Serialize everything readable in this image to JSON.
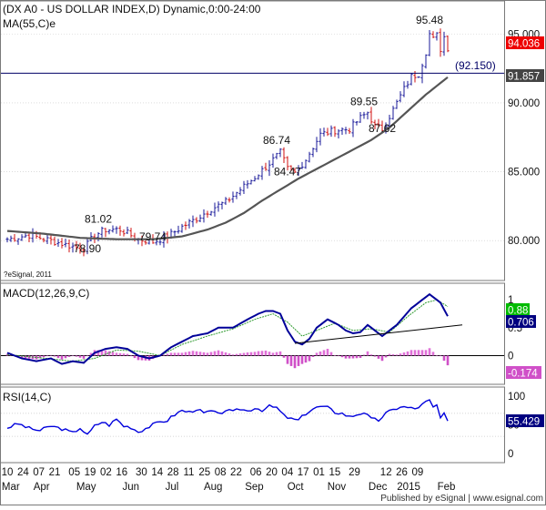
{
  "colors": {
    "frame": "#7a7a7a",
    "grid": "#c8c8c8",
    "text": "#111111",
    "bar_up": "#1a1a9a",
    "bar_down": "#d01010",
    "ma_line": "#555555",
    "macd_line": "#000099",
    "signal_line": "#2e9a2e",
    "hist_pos": "#e070d8",
    "hist_neg": "#d050c8",
    "rsi_line": "#0000dd",
    "hline": "#000066",
    "label_red_bg": "#ee0000",
    "label_green_bg": "#00bb00",
    "label_navy_bg": "#000080",
    "label_gray_bg": "#444444"
  },
  "header": {
    "title": "(DX A0 - US DOLLAR INDEX,D) Dynamic,0:00-24:00",
    "ma_label": "MA(55,C)e",
    "copyright": "?eSignal, 2011"
  },
  "footer": {
    "published": "Published by eSignal | www.esignal.com"
  },
  "chart_data": [
    {
      "type": "candlestick",
      "panel": "price",
      "title": "(DX A0 - US DOLLAR INDEX,D) Dynamic,0:00-24:00",
      "ylim": [
        77.5,
        97
      ],
      "y_ticks": [
        "95.000",
        "90.000",
        "85.000",
        "80.000"
      ],
      "last_price": "94.036",
      "ma_value": "91.857",
      "horizontal_level": "(92.150)",
      "annotations": [
        {
          "text": "95.48",
          "x": 116,
          "y": 95.48
        },
        {
          "text": "89.55",
          "x": 98,
          "y": 89.55
        },
        {
          "text": "87.62",
          "x": 103,
          "y": 87.62
        },
        {
          "text": "86.74",
          "x": 74,
          "y": 86.74
        },
        {
          "text": "84.47",
          "x": 77,
          "y": 84.47
        },
        {
          "text": "81.02",
          "x": 25,
          "y": 81.02
        },
        {
          "text": "79.74",
          "x": 40,
          "y": 79.74
        },
        {
          "text": "78.90",
          "x": 22,
          "y": 78.9
        }
      ],
      "close_keypoints": [
        [
          0,
          80.1
        ],
        [
          6,
          80.4
        ],
        [
          12,
          80.0
        ],
        [
          16,
          79.7
        ],
        [
          21,
          79.4
        ],
        [
          24,
          80.4
        ],
        [
          27,
          80.8
        ],
        [
          31,
          80.8
        ],
        [
          36,
          80.1
        ],
        [
          40,
          79.9
        ],
        [
          44,
          80.3
        ],
        [
          48,
          81.0
        ],
        [
          52,
          81.6
        ],
        [
          56,
          82.3
        ],
        [
          60,
          82.8
        ],
        [
          64,
          83.7
        ],
        [
          68,
          84.6
        ],
        [
          72,
          85.6
        ],
        [
          75,
          86.4
        ],
        [
          77,
          85.2
        ],
        [
          79,
          84.9
        ],
        [
          82,
          85.9
        ],
        [
          86,
          87.7
        ],
        [
          90,
          88.0
        ],
        [
          94,
          88.1
        ],
        [
          97,
          88.9
        ],
        [
          99,
          89.3
        ],
        [
          101,
          88.3
        ],
        [
          103,
          88.1
        ],
        [
          106,
          89.5
        ],
        [
          109,
          91.0
        ],
        [
          111,
          91.9
        ],
        [
          113,
          92.1
        ],
        [
          115,
          93.7
        ],
        [
          116,
          95.0
        ],
        [
          117,
          94.6
        ],
        [
          118,
          94.9
        ],
        [
          119,
          93.9
        ],
        [
          120,
          94.8
        ],
        [
          121,
          94.0
        ]
      ],
      "ma_keypoints": [
        [
          0,
          80.7
        ],
        [
          10,
          80.5
        ],
        [
          20,
          80.2
        ],
        [
          30,
          80.1
        ],
        [
          40,
          80.1
        ],
        [
          48,
          80.3
        ],
        [
          55,
          80.8
        ],
        [
          60,
          81.3
        ],
        [
          65,
          82.0
        ],
        [
          70,
          82.9
        ],
        [
          75,
          83.7
        ],
        [
          80,
          84.5
        ],
        [
          85,
          85.2
        ],
        [
          90,
          85.9
        ],
        [
          95,
          86.6
        ],
        [
          100,
          87.3
        ],
        [
          105,
          88.2
        ],
        [
          110,
          89.4
        ],
        [
          115,
          90.6
        ],
        [
          121,
          91.857
        ]
      ]
    },
    {
      "type": "line",
      "panel": "macd",
      "title": "MACD(12,26,9,C)",
      "ylim": [
        -0.45,
        1.2
      ],
      "y_ticks": [
        "1",
        "0.5",
        "0"
      ],
      "macd_value": "0.706",
      "signal_value": "0.88",
      "hist_value": "-0.174",
      "macd_keypoints": [
        [
          0,
          0.05
        ],
        [
          4,
          -0.05
        ],
        [
          8,
          -0.1
        ],
        [
          12,
          -0.05
        ],
        [
          15,
          -0.15
        ],
        [
          18,
          -0.1
        ],
        [
          21,
          -0.13
        ],
        [
          24,
          0.05
        ],
        [
          27,
          0.12
        ],
        [
          30,
          0.15
        ],
        [
          33,
          0.12
        ],
        [
          36,
          0.0
        ],
        [
          39,
          -0.05
        ],
        [
          42,
          0.0
        ],
        [
          45,
          0.15
        ],
        [
          48,
          0.25
        ],
        [
          51,
          0.35
        ],
        [
          55,
          0.4
        ],
        [
          58,
          0.5
        ],
        [
          62,
          0.5
        ],
        [
          66,
          0.65
        ],
        [
          69,
          0.75
        ],
        [
          71,
          0.8
        ],
        [
          73,
          0.8
        ],
        [
          75,
          0.75
        ],
        [
          77,
          0.45
        ],
        [
          79,
          0.25
        ],
        [
          81,
          0.2
        ],
        [
          83,
          0.3
        ],
        [
          85,
          0.5
        ],
        [
          88,
          0.65
        ],
        [
          91,
          0.55
        ],
        [
          93,
          0.45
        ],
        [
          95,
          0.4
        ],
        [
          97,
          0.42
        ],
        [
          99,
          0.55
        ],
        [
          101,
          0.45
        ],
        [
          103,
          0.35
        ],
        [
          105,
          0.45
        ],
        [
          107,
          0.55
        ],
        [
          109,
          0.7
        ],
        [
          111,
          0.85
        ],
        [
          113,
          0.95
        ],
        [
          115,
          1.05
        ],
        [
          116,
          1.1
        ],
        [
          117,
          1.05
        ],
        [
          119,
          0.95
        ],
        [
          121,
          0.706
        ]
      ],
      "signal_keypoints": [
        [
          0,
          0.02
        ],
        [
          6,
          -0.02
        ],
        [
          12,
          -0.06
        ],
        [
          18,
          -0.1
        ],
        [
          24,
          -0.05
        ],
        [
          30,
          0.1
        ],
        [
          36,
          0.08
        ],
        [
          42,
          0.0
        ],
        [
          48,
          0.2
        ],
        [
          55,
          0.35
        ],
        [
          62,
          0.48
        ],
        [
          68,
          0.65
        ],
        [
          73,
          0.75
        ],
        [
          77,
          0.6
        ],
        [
          81,
          0.35
        ],
        [
          85,
          0.45
        ],
        [
          90,
          0.58
        ],
        [
          95,
          0.45
        ],
        [
          100,
          0.48
        ],
        [
          105,
          0.42
        ],
        [
          110,
          0.7
        ],
        [
          115,
          0.95
        ],
        [
          118,
          1.0
        ],
        [
          121,
          0.88
        ]
      ],
      "trendline": [
        [
          79,
          0.22
        ],
        [
          121,
          0.52
        ]
      ]
    },
    {
      "type": "line",
      "panel": "rsi",
      "title": "RSI(14,C)",
      "ylim": [
        0,
        100
      ],
      "y_ticks": [
        "100",
        "50",
        "0"
      ],
      "rsi_value": "55.429",
      "guide_levels": [
        70,
        30
      ],
      "rsi_keypoints": [
        [
          0,
          45
        ],
        [
          3,
          52
        ],
        [
          6,
          44
        ],
        [
          9,
          40
        ],
        [
          12,
          48
        ],
        [
          15,
          43
        ],
        [
          18,
          36
        ],
        [
          20,
          45
        ],
        [
          22,
          32
        ],
        [
          24,
          48
        ],
        [
          26,
          55
        ],
        [
          28,
          50
        ],
        [
          30,
          60
        ],
        [
          32,
          48
        ],
        [
          34,
          46
        ],
        [
          36,
          38
        ],
        [
          38,
          44
        ],
        [
          40,
          50
        ],
        [
          42,
          55
        ],
        [
          44,
          58
        ],
        [
          46,
          68
        ],
        [
          48,
          75
        ],
        [
          50,
          72
        ],
        [
          52,
          78
        ],
        [
          54,
          70
        ],
        [
          56,
          74
        ],
        [
          58,
          68
        ],
        [
          60,
          76
        ],
        [
          62,
          72
        ],
        [
          64,
          78
        ],
        [
          66,
          74
        ],
        [
          68,
          80
        ],
        [
          70,
          76
        ],
        [
          72,
          82
        ],
        [
          74,
          80
        ],
        [
          76,
          66
        ],
        [
          78,
          60
        ],
        [
          80,
          58
        ],
        [
          82,
          70
        ],
        [
          84,
          78
        ],
        [
          86,
          82
        ],
        [
          88,
          80
        ],
        [
          90,
          72
        ],
        [
          92,
          70
        ],
        [
          94,
          64
        ],
        [
          96,
          68
        ],
        [
          98,
          72
        ],
        [
          100,
          60
        ],
        [
          102,
          58
        ],
        [
          104,
          70
        ],
        [
          106,
          76
        ],
        [
          108,
          82
        ],
        [
          110,
          80
        ],
        [
          112,
          78
        ],
        [
          114,
          85
        ],
        [
          115,
          90
        ],
        [
          116,
          92
        ],
        [
          117,
          80
        ],
        [
          118,
          84
        ],
        [
          119,
          62
        ],
        [
          120,
          68
        ],
        [
          121,
          55.429
        ]
      ]
    }
  ],
  "x_axis": {
    "day_labels": [
      {
        "text": "10",
        "i": 0
      },
      {
        "text": "24",
        "i": 4
      },
      {
        "text": "07",
        "i": 8
      },
      {
        "text": "21",
        "i": 12
      },
      {
        "text": "05",
        "i": 17
      },
      {
        "text": "19",
        "i": 21
      },
      {
        "text": "02",
        "i": 25
      },
      {
        "text": "16",
        "i": 29
      },
      {
        "text": "30",
        "i": 34
      },
      {
        "text": "14",
        "i": 38
      },
      {
        "text": "28",
        "i": 42
      },
      {
        "text": "11",
        "i": 46
      },
      {
        "text": "25",
        "i": 50
      },
      {
        "text": "08",
        "i": 54
      },
      {
        "text": "22",
        "i": 58
      },
      {
        "text": "06",
        "i": 63
      },
      {
        "text": "20",
        "i": 67
      },
      {
        "text": "04",
        "i": 71
      },
      {
        "text": "17",
        "i": 75
      },
      {
        "text": "01",
        "i": 79
      },
      {
        "text": "15",
        "i": 83
      },
      {
        "text": "29",
        "i": 88
      },
      {
        "text": "12",
        "i": 96
      },
      {
        "text": "26",
        "i": 100
      },
      {
        "text": "09",
        "i": 104
      }
    ],
    "month_labels": [
      {
        "text": "Mar",
        "i": 1
      },
      {
        "text": "Apr",
        "i": 10
      },
      {
        "text": "May",
        "i": 23
      },
      {
        "text": "Jun",
        "i": 36
      },
      {
        "text": "Jul",
        "i": 48
      },
      {
        "text": "Aug",
        "i": 60
      },
      {
        "text": "Sep",
        "i": 72
      },
      {
        "text": "Oct",
        "i": 84
      },
      {
        "text": "Nov",
        "i": 96
      },
      {
        "text": "Dec",
        "i": 108
      },
      {
        "text": "2015",
        "i": 117
      },
      {
        "text": "Feb",
        "i": 128
      }
    ]
  }
}
